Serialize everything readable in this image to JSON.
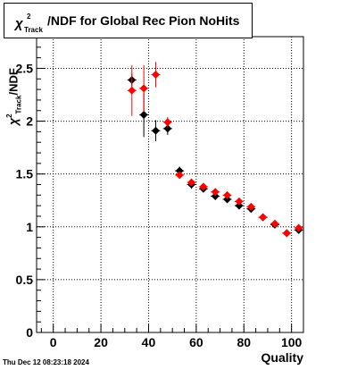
{
  "chart_data": {
    "type": "scatter",
    "title": {
      "symbol": "χ",
      "superscript": "2",
      "subscript": "Track",
      "text": "/NDF for Global Rec Pion NoHits"
    },
    "xlabel": "Quality",
    "ylabel": {
      "symbol": "χ",
      "superscript": "2",
      "subscript": "Track",
      "text": "/NDF"
    },
    "xlim": [
      -7,
      105
    ],
    "ylim": [
      0,
      2.8
    ],
    "x_ticks": [
      0,
      20,
      40,
      60,
      80,
      100
    ],
    "x_tick_labels": [
      "0",
      "20",
      "40",
      "60",
      "80",
      "100"
    ],
    "y_ticks": [
      0,
      0.5,
      1,
      1.5,
      2,
      2.5
    ],
    "y_tick_labels": [
      "0",
      "0.5",
      "1",
      "1.5",
      "2",
      "2.5"
    ],
    "grid": true,
    "series": [
      {
        "color": "#000000",
        "x": [
          33,
          38,
          43,
          48,
          53,
          58,
          63,
          68,
          73,
          78,
          83,
          88,
          93,
          98,
          103
        ],
        "y": [
          2.39,
          2.06,
          1.91,
          1.93,
          1.53,
          1.4,
          1.36,
          1.29,
          1.26,
          1.2,
          1.17,
          1.09,
          1.02,
          0.94,
          0.97
        ],
        "ey": [
          0.06,
          0.21,
          0.1,
          0.06,
          0.04,
          0.04,
          0.03,
          0.03,
          0.03,
          0.03,
          0.02,
          0.02,
          0.02,
          0.02,
          0.03
        ]
      },
      {
        "color": "#ff0000",
        "x": [
          33,
          38,
          43,
          48,
          53,
          58,
          63,
          68,
          73,
          78,
          83,
          88,
          93,
          98,
          103
        ],
        "y": [
          2.29,
          2.31,
          2.44,
          1.99,
          1.49,
          1.42,
          1.38,
          1.33,
          1.3,
          1.24,
          1.19,
          1.09,
          1.03,
          0.94,
          0.99
        ],
        "ey": [
          0.24,
          0.22,
          0.12,
          0.05,
          0.03,
          0.03,
          0.03,
          0.03,
          0.03,
          0.03,
          0.02,
          0.02,
          0.02,
          0.02,
          0.03
        ]
      }
    ]
  },
  "footer": {
    "timestamp": "Thu Dec 12 08:23:18 2024"
  }
}
